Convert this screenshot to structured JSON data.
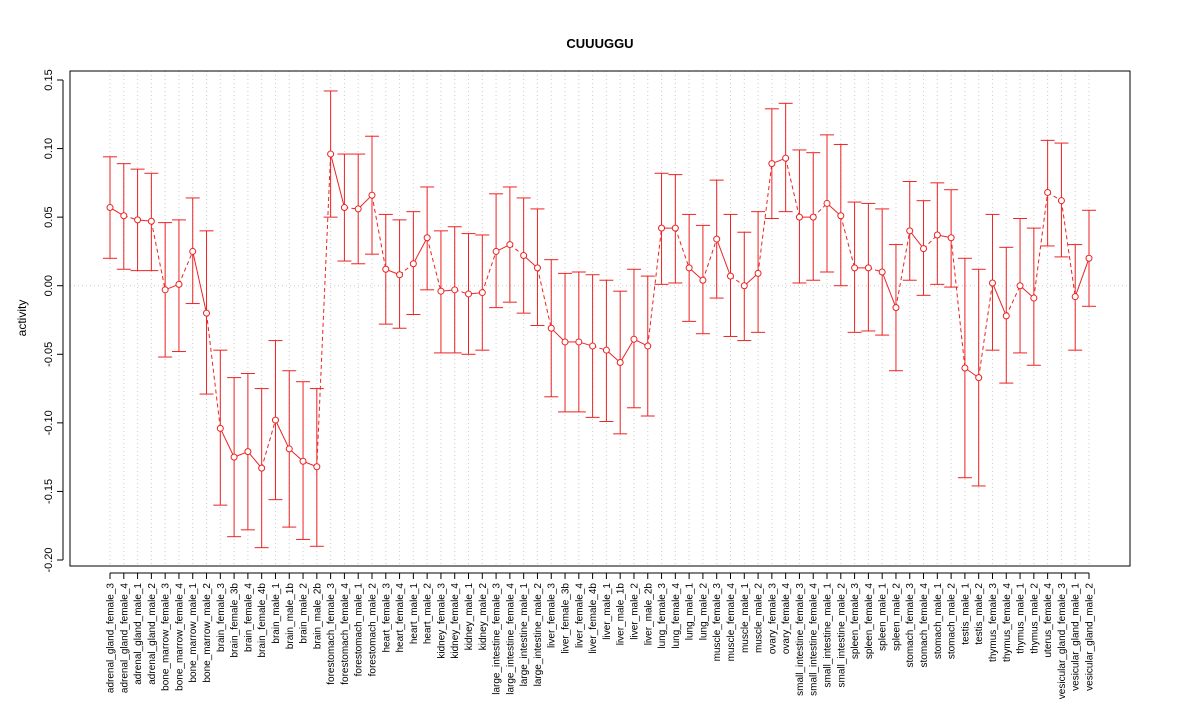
{
  "chart_data": {
    "type": "line",
    "title": "CUUUGGU",
    "xlabel": "",
    "ylabel": "activity",
    "ylim": [
      -0.2,
      0.15
    ],
    "yticks": [
      -0.2,
      -0.15,
      -0.1,
      -0.05,
      0.0,
      0.05,
      0.1,
      0.15
    ],
    "ytick_labels": [
      "-0.20",
      "-0.15",
      "-0.10",
      "-0.05",
      "0.00",
      "0.05",
      "0.10",
      "0.15"
    ],
    "grid": true,
    "colors": {
      "series": "#ee2222",
      "grid": "#cccccc",
      "axis": "#000000"
    },
    "categories": [
      "adrenal_gland_female_3",
      "adrenal_gland_female_4",
      "adrenal_gland_male_1",
      "adrenal_gland_male_2",
      "bone_marrow_female_3",
      "bone_marrow_female_4",
      "bone_marrow_male_1",
      "bone_marrow_male_2",
      "brain_female_3",
      "brain_female_3b",
      "brain_female_4",
      "brain_female_4b",
      "brain_male_1",
      "brain_male_1b",
      "brain_male_2",
      "brain_male_2b",
      "forestomach_female_3",
      "forestomach_female_4",
      "forestomach_male_1",
      "forestomach_male_2",
      "heart_female_3",
      "heart_female_4",
      "heart_male_1",
      "heart_male_2",
      "kidney_female_3",
      "kidney_female_4",
      "kidney_male_1",
      "kidney_male_2",
      "large_intestine_female_3",
      "large_intestine_female_4",
      "large_intestine_male_1",
      "large_intestine_male_2",
      "liver_female_3",
      "liver_female_3b",
      "liver_female_4",
      "liver_female_4b",
      "liver_male_1",
      "liver_male_1b",
      "liver_male_2",
      "liver_male_2b",
      "lung_female_3",
      "lung_female_4",
      "lung_male_1",
      "lung_male_2",
      "muscle_female_3",
      "muscle_female_4",
      "muscle_male_1",
      "muscle_male_2",
      "ovary_female_3",
      "ovary_female_4",
      "small_intestine_female_3",
      "small_intestine_female_4",
      "small_intestine_male_1",
      "small_intestine_male_2",
      "spleen_female_3",
      "spleen_female_4",
      "spleen_male_1",
      "spleen_male_2",
      "stomach_female_3",
      "stomach_female_4",
      "stomach_male_1",
      "stomach_male_2",
      "testis_male_1",
      "testis_male_2",
      "thymus_female_3",
      "thymus_female_4",
      "thymus_male_1",
      "thymus_male_2",
      "uterus_female_4",
      "vesicular_gland_female_3",
      "vesicular_gland_male_1",
      "vesicular_gland_male_2"
    ],
    "values": [
      0.057,
      0.051,
      0.048,
      0.047,
      -0.003,
      0.001,
      0.025,
      -0.02,
      -0.104,
      -0.125,
      -0.121,
      -0.133,
      -0.098,
      -0.119,
      -0.128,
      -0.132,
      0.096,
      0.057,
      0.056,
      0.066,
      0.012,
      0.008,
      0.016,
      0.035,
      -0.004,
      -0.003,
      -0.006,
      -0.005,
      0.025,
      0.03,
      0.022,
      0.013,
      -0.031,
      -0.041,
      -0.041,
      -0.044,
      -0.047,
      -0.056,
      -0.039,
      -0.044,
      0.042,
      0.042,
      0.013,
      0.004,
      0.034,
      0.007,
      0.0,
      0.009,
      0.089,
      0.093,
      0.05,
      0.05,
      0.06,
      0.051,
      0.013,
      0.013,
      0.01,
      -0.016,
      0.04,
      0.027,
      0.037,
      0.035,
      -0.06,
      -0.067,
      0.002,
      -0.022,
      0.0,
      -0.009,
      0.068,
      0.062,
      -0.008,
      0.02
    ],
    "lower": [
      0.02,
      0.012,
      0.011,
      0.011,
      -0.052,
      -0.048,
      -0.013,
      -0.079,
      -0.16,
      -0.183,
      -0.178,
      -0.191,
      -0.156,
      -0.176,
      -0.185,
      -0.19,
      0.05,
      0.018,
      0.016,
      0.023,
      -0.028,
      -0.031,
      -0.021,
      -0.003,
      -0.049,
      -0.049,
      -0.05,
      -0.047,
      -0.016,
      -0.012,
      -0.02,
      -0.029,
      -0.081,
      -0.092,
      -0.092,
      -0.096,
      -0.099,
      -0.108,
      -0.089,
      -0.095,
      0.001,
      0.002,
      -0.026,
      -0.035,
      -0.009,
      -0.037,
      -0.04,
      -0.034,
      0.049,
      0.054,
      0.002,
      0.004,
      0.01,
      0.0,
      -0.034,
      -0.033,
      -0.036,
      -0.062,
      0.004,
      -0.007,
      0.001,
      -0.001,
      -0.14,
      -0.146,
      -0.047,
      -0.071,
      -0.049,
      -0.058,
      0.029,
      0.021,
      -0.047,
      -0.015
    ],
    "upper": [
      0.094,
      0.089,
      0.085,
      0.082,
      0.046,
      0.048,
      0.064,
      0.04,
      -0.047,
      -0.067,
      -0.064,
      -0.075,
      -0.04,
      -0.062,
      -0.07,
      -0.075,
      0.142,
      0.096,
      0.096,
      0.109,
      0.052,
      0.048,
      0.054,
      0.072,
      0.04,
      0.043,
      0.038,
      0.037,
      0.067,
      0.072,
      0.064,
      0.056,
      0.019,
      0.009,
      0.01,
      0.008,
      0.004,
      -0.004,
      0.012,
      0.007,
      0.082,
      0.081,
      0.052,
      0.044,
      0.077,
      0.052,
      0.039,
      0.054,
      0.129,
      0.133,
      0.099,
      0.097,
      0.11,
      0.103,
      0.061,
      0.06,
      0.056,
      0.03,
      0.076,
      0.062,
      0.075,
      0.07,
      0.02,
      0.012,
      0.052,
      0.028,
      0.049,
      0.042,
      0.106,
      0.104,
      0.03,
      0.055
    ]
  }
}
